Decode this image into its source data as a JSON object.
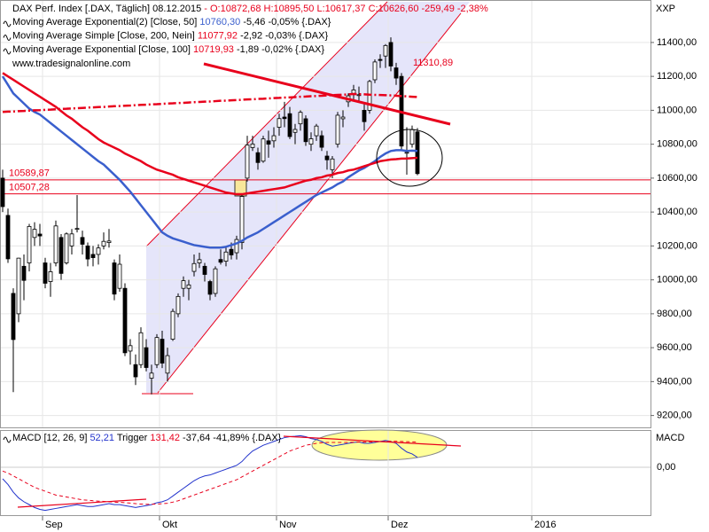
{
  "chart_data": [
    {
      "type": "candlestick",
      "title": "DAX Perf. Index [.DAX, Täglich] 08.12.2015",
      "title_quote": "- O:10872,68 H:10895,50 L:10617,37 C:10626,60 -259,49 -2,38%",
      "source": "www.tradesignalonline.com",
      "unit_label": "XXP",
      "annotation": "11310,89",
      "categories": [
        null,
        null,
        null,
        null,
        null,
        null,
        null,
        null,
        "Sep",
        null,
        null,
        null,
        null,
        null,
        null,
        null,
        null,
        null,
        null,
        null,
        null,
        null,
        null,
        null,
        null,
        null,
        null,
        null,
        null,
        null,
        "Okt",
        null,
        null,
        null,
        null,
        null,
        null,
        null,
        null,
        null,
        null,
        null,
        null,
        null,
        null,
        null,
        null,
        null,
        null,
        null,
        null,
        null,
        "Nov",
        null,
        null,
        null,
        null,
        null,
        null,
        null,
        null,
        null,
        null,
        null,
        null,
        null,
        null,
        null,
        null,
        null,
        null,
        null,
        null,
        "Dez",
        null,
        null,
        null,
        null,
        null,
        null,
        null,
        null,
        null,
        null,
        null,
        null,
        null,
        null,
        null,
        null,
        null,
        null,
        null,
        null,
        null,
        null,
        null,
        null,
        null,
        null,
        "2016"
      ],
      "open": [
        10600,
        10380,
        9920,
        9800,
        10080,
        10100,
        10250,
        10270,
        10100,
        9990,
        10100,
        10250,
        10100,
        10200,
        10300,
        10250,
        10200,
        10150,
        10150,
        10200,
        10220,
        10100,
        9950,
        9950,
        9580,
        9500,
        9500,
        9600,
        9420,
        9500,
        9650,
        9450,
        9650,
        9800,
        9950,
        9950,
        10050,
        10100,
        10080,
        9990,
        9920,
        10120,
        10110,
        10180,
        10160,
        10220,
        10600,
        10780,
        10750,
        10700,
        10820,
        10820,
        10900,
        10960,
        10980,
        10870,
        10920,
        10950,
        10800,
        10850,
        10850,
        10730,
        10650,
        10800,
        10950,
        11050,
        11100,
        11090,
        11000,
        11000,
        11180,
        11300,
        11320,
        11400,
        11250,
        11200,
        10750,
        10800,
        10872.68,
        null,
        null,
        null,
        null,
        null,
        null,
        null,
        null,
        null,
        null,
        null,
        null,
        null,
        null,
        null,
        null,
        null,
        null,
        null,
        null,
        null,
        null
      ],
      "high": [
        10650,
        10420,
        9950,
        10130,
        10150,
        10330,
        10340,
        10330,
        10130,
        10100,
        10350,
        10270,
        10280,
        10300,
        10500,
        10290,
        10220,
        10200,
        10210,
        10280,
        10300,
        10120,
        10150,
        9980,
        9650,
        9560,
        9720,
        9650,
        9500,
        9680,
        9700,
        9600,
        9830,
        9920,
        10020,
        10000,
        10150,
        10160,
        10100,
        10000,
        10080,
        10180,
        10200,
        10220,
        10260,
        10500,
        10850,
        10850,
        10780,
        10850,
        10880,
        10900,
        10980,
        11050,
        11020,
        10920,
        11000,
        10970,
        10870,
        10920,
        10880,
        10760,
        10730,
        10990,
        11000,
        11100,
        11150,
        11140,
        11040,
        11180,
        11300,
        11330,
        11390,
        11430,
        11280,
        11220,
        10900,
        10910,
        10895.5,
        null,
        null,
        null,
        null,
        null,
        null,
        null,
        null,
        null,
        null,
        null,
        null,
        null,
        null,
        null,
        null,
        null,
        null,
        null,
        null,
        null,
        null
      ],
      "low": [
        10400,
        10100,
        9338,
        9750,
        9880,
        10050,
        10200,
        10200,
        9950,
        9900,
        10080,
        10000,
        10090,
        10150,
        10280,
        10150,
        10080,
        10080,
        10090,
        10180,
        10190,
        9880,
        9930,
        9550,
        9500,
        9380,
        9480,
        9460,
        9325,
        9480,
        9480,
        9400,
        9640,
        9780,
        9900,
        9880,
        10020,
        10070,
        9990,
        9880,
        9900,
        10090,
        10080,
        10120,
        10120,
        10180,
        10580,
        10760,
        10650,
        10690,
        10720,
        10780,
        10850,
        10900,
        10830,
        10800,
        10880,
        10790,
        10760,
        10820,
        10760,
        10650,
        10600,
        10780,
        10900,
        11020,
        11060,
        11050,
        10880,
        10980,
        11160,
        11250,
        11250,
        11230,
        11150,
        10760,
        10620,
        10780,
        10617.37,
        null,
        null,
        null,
        null,
        null,
        null,
        null,
        null,
        null,
        null,
        null,
        null,
        null,
        null,
        null,
        null,
        null,
        null,
        null,
        null,
        null,
        null
      ],
      "close": [
        10432,
        10124,
        9648,
        10128,
        9997,
        10315,
        10298,
        10259,
        9980,
        10048,
        10318,
        10038,
        10271,
        10271,
        10303,
        10210,
        10123,
        10131,
        10188,
        10227,
        10229,
        9916,
        10092,
        9570,
        9612,
        9428,
        9688,
        9483,
        9450,
        9660,
        9509,
        9553,
        9814,
        9902,
        9995,
        9970,
        10096,
        10119,
        10032,
        9915,
        10065,
        10104,
        10164,
        10147,
        10238,
        10492,
        10795,
        10801,
        10692,
        10831,
        10800,
        10850,
        10951,
        10951,
        10845,
        10887,
        10988,
        10815,
        10832,
        10907,
        10782,
        10708,
        10713,
        10971,
        10960,
        11085,
        11120,
        11092,
        10933,
        11170,
        11285,
        11294,
        11382,
        11261,
        11190,
        10789,
        10752,
        10886,
        10626.6,
        null,
        null,
        null,
        null,
        null,
        null,
        null,
        null,
        null,
        null,
        null,
        null,
        null,
        null,
        null,
        null,
        null,
        null,
        null,
        null,
        null,
        null
      ],
      "up_color": "#ffffff",
      "down_color": "#000000",
      "overlays": [
        {
          "name": "Moving Average Exponential(2) [Close, 50]",
          "last_label": "10760,30",
          "change": "-5,46 -0,05% {.DAX}",
          "color": "#3a5fcd",
          "style": "solid",
          "values": [
            11200,
            11150,
            11100,
            11070,
            11040,
            11010,
            10990,
            10975,
            10950,
            10925,
            10900,
            10875,
            10850,
            10825,
            10800,
            10775,
            10750,
            10725,
            10700,
            10680,
            10650,
            10620,
            10590,
            10555,
            10520,
            10480,
            10440,
            10400,
            10360,
            10320,
            10280,
            10260,
            10245,
            10235,
            10225,
            10215,
            10205,
            10200,
            10195,
            10190,
            10190,
            10190,
            10195,
            10205,
            10215,
            10230,
            10250,
            10265,
            10280,
            10300,
            10320,
            10340,
            10360,
            10380,
            10400,
            10420,
            10440,
            10460,
            10480,
            10500,
            10515,
            10530,
            10545,
            10565,
            10580,
            10605,
            10625,
            10645,
            10660,
            10680,
            10700,
            10725,
            10745,
            10760,
            10765,
            10765,
            10760,
            10762,
            10760,
            null,
            null,
            null,
            null,
            null,
            null,
            null,
            null,
            null,
            null,
            null,
            null,
            null,
            null,
            null,
            null,
            null,
            null,
            null,
            null,
            null,
            null
          ]
        },
        {
          "name": "Moving Average Simple [Close, 200, Nein]",
          "last_label": "11077,92",
          "change": "-2,92 -0,03% {.DAX}",
          "color": "#e8001c",
          "style": "dashdot",
          "values": [
            10990,
            10992,
            10993,
            10995,
            10996,
            10998,
            11000,
            11001,
            11003,
            11004,
            11006,
            11008,
            11009,
            11011,
            11012,
            11014,
            11016,
            11017,
            11019,
            11020,
            11022,
            11024,
            11025,
            11027,
            11028,
            11030,
            11032,
            11033,
            11035,
            11036,
            11038,
            11040,
            11041,
            11043,
            11044,
            11046,
            11048,
            11049,
            11051,
            11052,
            11054,
            11056,
            11057,
            11059,
            11060,
            11062,
            11064,
            11065,
            11067,
            11068,
            11070,
            11072,
            11073,
            11075,
            11076,
            11078,
            11080,
            11081,
            11083,
            11084,
            11086,
            11088,
            11089,
            11091,
            11092,
            11094,
            11096,
            11095,
            11094,
            11092,
            11091,
            11090,
            11089,
            11088,
            11086,
            11084,
            11082,
            11080,
            11078,
            null,
            null,
            null,
            null,
            null,
            null,
            null,
            null,
            null,
            null,
            null,
            null,
            null,
            null,
            null,
            null,
            null,
            null,
            null,
            null,
            null,
            null
          ]
        },
        {
          "name": "Moving Average Exponential [Close, 100]",
          "last_label": "10719,93",
          "change": "-1,89 -0,02% {.DAX}",
          "color": "#e8001c",
          "style": "solid",
          "values": [
            11220,
            11200,
            11180,
            11160,
            11140,
            11120,
            11100,
            11080,
            11060,
            11040,
            11020,
            10995,
            10970,
            10950,
            10925,
            10900,
            10880,
            10855,
            10830,
            10810,
            10795,
            10780,
            10765,
            10745,
            10730,
            10715,
            10700,
            10680,
            10665,
            10650,
            10640,
            10630,
            10620,
            10605,
            10595,
            10585,
            10575,
            10565,
            10555,
            10545,
            10535,
            10525,
            10515,
            10510,
            10505,
            10505,
            10510,
            10515,
            10520,
            10525,
            10530,
            10535,
            10540,
            10545,
            10555,
            10565,
            10575,
            10585,
            10590,
            10600,
            10605,
            10615,
            10620,
            10630,
            10635,
            10645,
            10650,
            10660,
            10670,
            10680,
            10690,
            10700,
            10705,
            10710,
            10712,
            10715,
            10716,
            10718,
            10720,
            null,
            null,
            null,
            null,
            null,
            null,
            null,
            null,
            null,
            null,
            null,
            null,
            null,
            null,
            null,
            null,
            null,
            null,
            null,
            null,
            null,
            null
          ]
        }
      ],
      "levels": [
        {
          "value": 10589.87,
          "label": "10589,87"
        },
        {
          "value": 10507.28,
          "label": "10507,28"
        }
      ],
      "level_color": "#e8001c",
      "ylim": [
        9130,
        11640
      ],
      "yticks": [
        {
          "value": 9200,
          "label": "9200,00"
        },
        {
          "value": 9400,
          "label": "9400,00"
        },
        {
          "value": 9600,
          "label": "9600,00"
        },
        {
          "value": 9800,
          "label": "9800,00"
        },
        {
          "value": 10000,
          "label": "10000,00"
        },
        {
          "value": 10200,
          "label": "10200,00"
        },
        {
          "value": 10400,
          "label": "10400,00"
        },
        {
          "value": 10600,
          "label": "10600,00"
        },
        {
          "value": 10800,
          "label": "10800,00"
        },
        {
          "value": 11000,
          "label": "11000,00"
        },
        {
          "value": 11200,
          "label": "11200,00"
        },
        {
          "value": 11400,
          "label": "11400,00"
        }
      ],
      "grid": true
    },
    {
      "type": "line",
      "axis_label": "MACD",
      "series": [
        {
          "name": "MACD [12, 26, 9]",
          "last_label": "52,21",
          "color": "#2233cc",
          "style": "solid",
          "values": [
            -60,
            -90,
            -130,
            -160,
            -180,
            -195,
            -210,
            -220,
            -225,
            -220,
            -215,
            -210,
            -205,
            -200,
            -195,
            -200,
            -205,
            -205,
            -200,
            -195,
            -190,
            -195,
            -195,
            -200,
            -205,
            -210,
            -205,
            -200,
            -195,
            -185,
            -180,
            -170,
            -150,
            -130,
            -110,
            -90,
            -70,
            -55,
            -45,
            -40,
            -30,
            -20,
            -10,
            0,
            10,
            30,
            60,
            85,
            100,
            115,
            125,
            135,
            145,
            155,
            160,
            162,
            165,
            160,
            150,
            145,
            135,
            120,
            110,
            115,
            120,
            125,
            130,
            132,
            125,
            125,
            130,
            135,
            140,
            135,
            125,
            100,
            80,
            70,
            52,
            null,
            null,
            null,
            null,
            null,
            null,
            null,
            null,
            null,
            null,
            null,
            null,
            null,
            null,
            null,
            null,
            null,
            null,
            null,
            null,
            null,
            null
          ]
        },
        {
          "name": "Trigger",
          "last_label": "131,42",
          "change": "-37,64 -41,89% {.DAX}",
          "color": "#e8001c",
          "style": "dashed",
          "values": [
            -20,
            -30,
            -45,
            -60,
            -75,
            -90,
            -105,
            -115,
            -125,
            -135,
            -145,
            -150,
            -155,
            -160,
            -165,
            -170,
            -172,
            -175,
            -177,
            -178,
            -180,
            -182,
            -183,
            -185,
            -187,
            -190,
            -192,
            -193,
            -193,
            -192,
            -190,
            -188,
            -182,
            -175,
            -165,
            -155,
            -145,
            -135,
            -125,
            -115,
            -105,
            -95,
            -85,
            -75,
            -65,
            -50,
            -35,
            -20,
            -5,
            10,
            25,
            40,
            55,
            70,
            85,
            95,
            105,
            115,
            120,
            125,
            128,
            130,
            130,
            130,
            130,
            130,
            131,
            132,
            132,
            132,
            133,
            134,
            135,
            136,
            136,
            135,
            134,
            133,
            131,
            null,
            null,
            null,
            null,
            null,
            null,
            null,
            null,
            null,
            null,
            null,
            null,
            null,
            null,
            null,
            null,
            null,
            null,
            null,
            null,
            null,
            null
          ]
        }
      ],
      "ylim": [
        -250,
        190
      ],
      "yticks": [
        {
          "value": 0,
          "label": "0,00"
        }
      ]
    }
  ]
}
